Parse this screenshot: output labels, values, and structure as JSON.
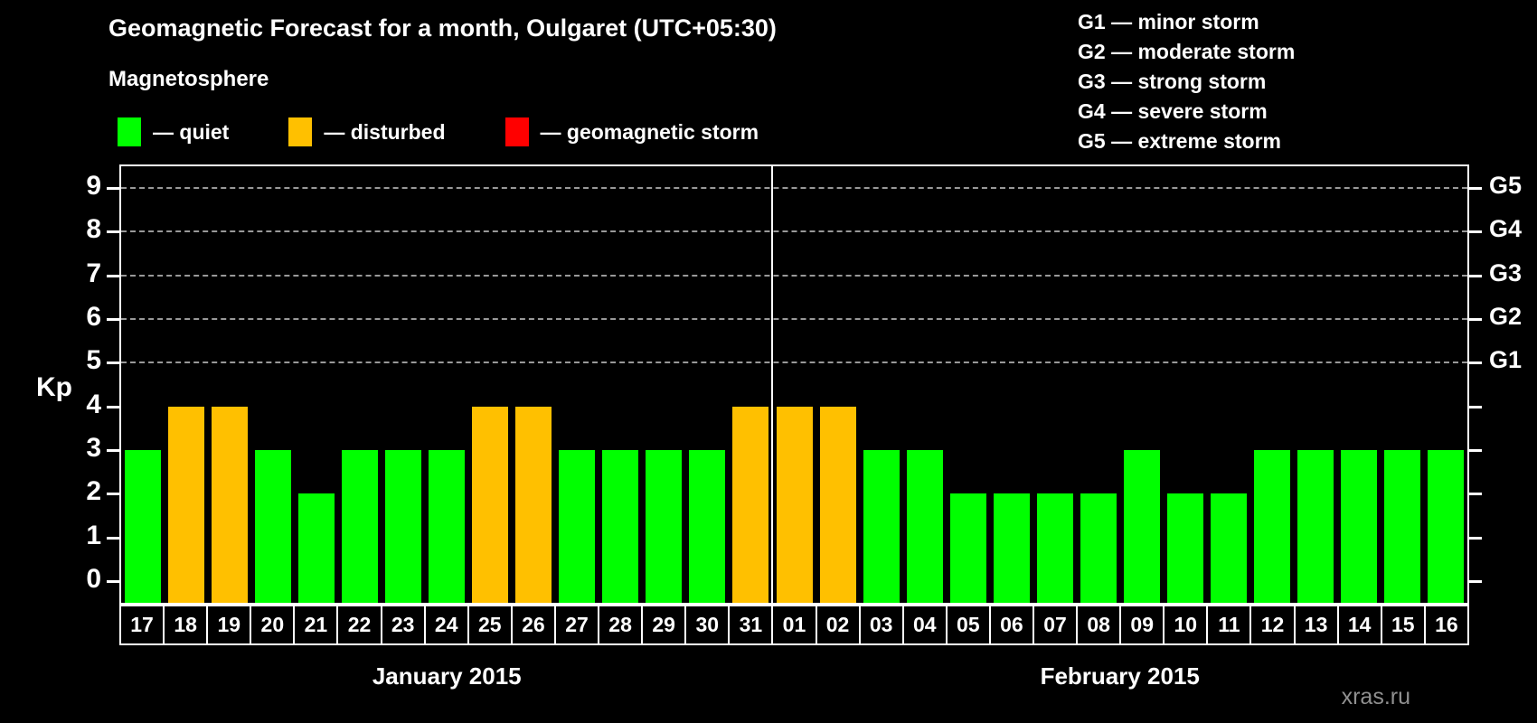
{
  "title": "Geomagnetic Forecast for a month, Oulgaret (UTC+05:30)",
  "legend": {
    "heading": "Magnetosphere",
    "items": [
      {
        "label": "— quiet",
        "status": "quiet",
        "color": "#00ff00"
      },
      {
        "label": "— disturbed",
        "status": "disturbed",
        "color": "#ffc000"
      },
      {
        "label": "— geomagnetic storm",
        "status": "storm",
        "color": "#ff0000"
      }
    ]
  },
  "g_legend": [
    "G1 — minor storm",
    "G2 — moderate storm",
    "G3 — strong storm",
    "G4 — severe storm",
    "G5 — extreme storm"
  ],
  "watermark": "xras.ru",
  "chart_data": {
    "type": "bar",
    "ylabel": "Kp",
    "ylim": [
      -0.5,
      9.5
    ],
    "yticks": [
      0,
      1,
      2,
      3,
      4,
      5,
      6,
      7,
      8,
      9
    ],
    "gridlines": [
      5,
      6,
      7,
      8,
      9
    ],
    "right_axis": [
      {
        "value": 5,
        "label": "G1"
      },
      {
        "value": 6,
        "label": "G2"
      },
      {
        "value": 7,
        "label": "G3"
      },
      {
        "value": 8,
        "label": "G4"
      },
      {
        "value": 9,
        "label": "G5"
      }
    ],
    "status_colors": {
      "quiet": "#00ff00",
      "disturbed": "#ffc000",
      "storm": "#ff0000"
    },
    "months": [
      {
        "label": "January 2015",
        "days": [
          {
            "day": "17",
            "kp": 3,
            "status": "quiet"
          },
          {
            "day": "18",
            "kp": 4,
            "status": "disturbed"
          },
          {
            "day": "19",
            "kp": 4,
            "status": "disturbed"
          },
          {
            "day": "20",
            "kp": 3,
            "status": "quiet"
          },
          {
            "day": "21",
            "kp": 2,
            "status": "quiet"
          },
          {
            "day": "22",
            "kp": 3,
            "status": "quiet"
          },
          {
            "day": "23",
            "kp": 3,
            "status": "quiet"
          },
          {
            "day": "24",
            "kp": 3,
            "status": "quiet"
          },
          {
            "day": "25",
            "kp": 4,
            "status": "disturbed"
          },
          {
            "day": "26",
            "kp": 4,
            "status": "disturbed"
          },
          {
            "day": "27",
            "kp": 3,
            "status": "quiet"
          },
          {
            "day": "28",
            "kp": 3,
            "status": "quiet"
          },
          {
            "day": "29",
            "kp": 3,
            "status": "quiet"
          },
          {
            "day": "30",
            "kp": 3,
            "status": "quiet"
          },
          {
            "day": "31",
            "kp": 4,
            "status": "disturbed"
          }
        ]
      },
      {
        "label": "February 2015",
        "days": [
          {
            "day": "01",
            "kp": 4,
            "status": "disturbed"
          },
          {
            "day": "02",
            "kp": 4,
            "status": "disturbed"
          },
          {
            "day": "03",
            "kp": 3,
            "status": "quiet"
          },
          {
            "day": "04",
            "kp": 3,
            "status": "quiet"
          },
          {
            "day": "05",
            "kp": 2,
            "status": "quiet"
          },
          {
            "day": "06",
            "kp": 2,
            "status": "quiet"
          },
          {
            "day": "07",
            "kp": 2,
            "status": "quiet"
          },
          {
            "day": "08",
            "kp": 2,
            "status": "quiet"
          },
          {
            "day": "09",
            "kp": 3,
            "status": "quiet"
          },
          {
            "day": "10",
            "kp": 2,
            "status": "quiet"
          },
          {
            "day": "11",
            "kp": 2,
            "status": "quiet"
          },
          {
            "day": "12",
            "kp": 3,
            "status": "quiet"
          },
          {
            "day": "13",
            "kp": 3,
            "status": "quiet"
          },
          {
            "day": "14",
            "kp": 3,
            "status": "quiet"
          },
          {
            "day": "15",
            "kp": 3,
            "status": "quiet"
          },
          {
            "day": "16",
            "kp": 3,
            "status": "quiet"
          }
        ]
      }
    ]
  }
}
